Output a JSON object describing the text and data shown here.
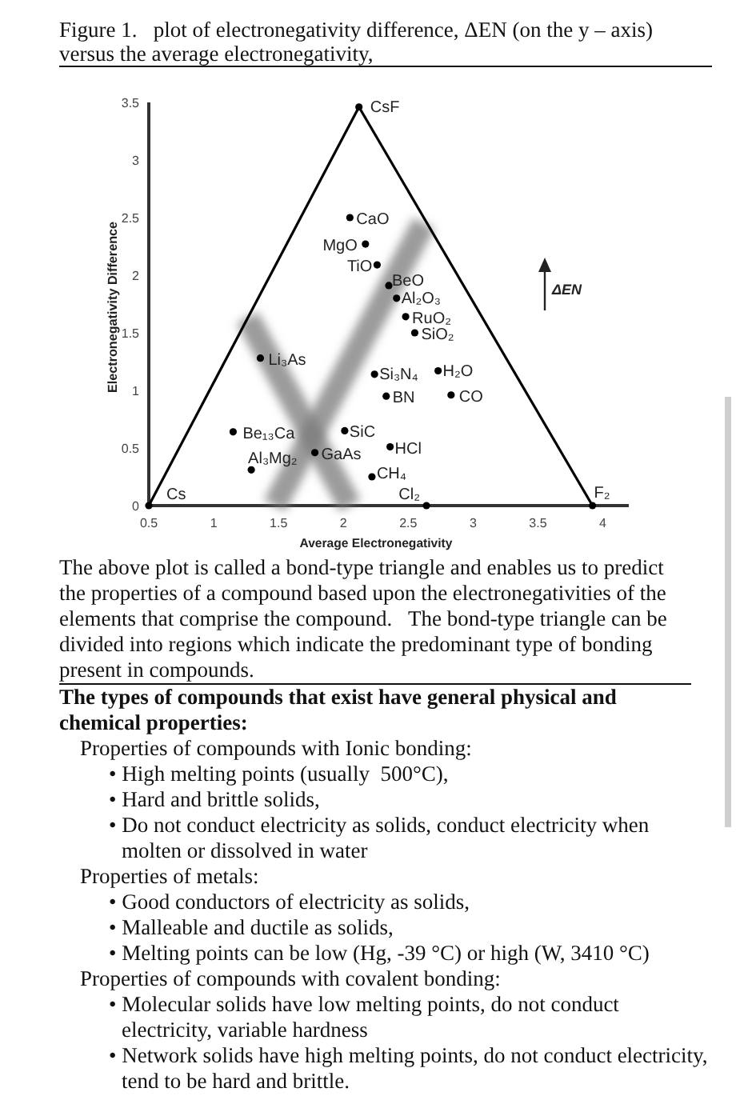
{
  "chart_data": {
    "type": "scatter",
    "title": "Figure 1.   plot of electronegativity difference, ΔEN (on the y – axis) versus the average electronegativity,",
    "xlabel": "Average Electronegativity",
    "ylabel": "Electronegativity Difference",
    "xlim": [
      0.5,
      4.2
    ],
    "ylim": [
      0,
      3.5
    ],
    "xticks": [
      0.5,
      1,
      1.5,
      2,
      2.5,
      3,
      3.5,
      4
    ],
    "yticks": [
      0,
      0.5,
      1,
      1.5,
      2,
      2.5,
      3,
      3.5
    ],
    "marker": "circle",
    "series": [
      {
        "type": "line",
        "color": "#7a7a7a",
        "marker": "none",
        "x": [
          1.26,
          2.05
        ],
        "values": [
          1.63,
          0
        ]
      },
      {
        "type": "line",
        "color": "#7a7a7a",
        "marker": "none",
        "x": [
          1.47,
          2.62
        ],
        "values": [
          0,
          2.45
        ]
      },
      {
        "type": "line",
        "color": "#000000",
        "marker": "none",
        "x": [
          0.5,
          2.12,
          3.92
        ],
        "values": [
          0,
          3.46,
          0
        ]
      },
      {
        "type": "scatter",
        "color": "#000000",
        "x": [
          2.12,
          2.05,
          2.17,
          2.26,
          2.35,
          2.41,
          2.48,
          2.55,
          1.36,
          2.24,
          2.33,
          2.73,
          2.83,
          1.15,
          2.01,
          1.78,
          2.36,
          1.29,
          2.22,
          2.64,
          0.5,
          3.92
        ],
        "values": [
          3.46,
          2.5,
          2.27,
          2.09,
          1.91,
          1.8,
          1.64,
          1.5,
          1.28,
          1.14,
          0.95,
          1.17,
          0.96,
          0.64,
          0.65,
          0.46,
          0.51,
          0.31,
          0.25,
          0,
          0,
          0
        ]
      }
    ],
    "annotations": [
      {
        "text": "CsF",
        "x": 2.12,
        "y": 3.46
      },
      {
        "text": "CaO",
        "x": 2.05,
        "y": 2.5
      },
      {
        "text": "MgO",
        "x": 2.17,
        "y": 2.27
      },
      {
        "text": "TiO",
        "x": 2.26,
        "y": 2.09
      },
      {
        "text": "BeO",
        "x": 2.35,
        "y": 1.91
      },
      {
        "text": "Al₂O₃",
        "x": 2.41,
        "y": 1.8
      },
      {
        "text": "RuO₂",
        "x": 2.48,
        "y": 1.64
      },
      {
        "text": "SiO₂",
        "x": 2.55,
        "y": 1.5
      },
      {
        "text": "Li₃As",
        "x": 1.36,
        "y": 1.28
      },
      {
        "text": "Si₃N₄",
        "x": 2.24,
        "y": 1.14
      },
      {
        "text": "BN",
        "x": 2.33,
        "y": 0.95
      },
      {
        "text": "H₂O",
        "x": 2.73,
        "y": 1.17
      },
      {
        "text": "CO",
        "x": 2.83,
        "y": 0.96
      },
      {
        "text": "Be₁₃Ca",
        "x": 1.15,
        "y": 0.64
      },
      {
        "text": "SiC",
        "x": 2.01,
        "y": 0.65
      },
      {
        "text": "GaAs",
        "x": 1.78,
        "y": 0.46
      },
      {
        "text": "HCl",
        "x": 2.36,
        "y": 0.51
      },
      {
        "text": "Al₃Mg₂",
        "x": 1.29,
        "y": 0.31
      },
      {
        "text": "CH₄",
        "x": 2.22,
        "y": 0.25
      },
      {
        "text": "Cl₂",
        "x": 2.64,
        "y": 0
      },
      {
        "text": "Cs",
        "x": 0.5,
        "y": 0
      },
      {
        "text": "F₂",
        "x": 3.92,
        "y": 0
      },
      "ΔEN",
      "The above plot is called a bond-type triangle and enables us to predict the properties of a compound based upon the electronegativities of the elements that comprise the compound.   The bond-type triangle can be divided into regions which indicate the predominant type of bonding present in compounds.",
      "The types of compounds that exist have general physical and chemical properties:",
      "Properties of compounds with Ionic bonding:",
      "• High melting points (usually  500°C),",
      "• Hard and brittle solids,",
      "• Do not conduct electricity as solids, conduct electricity when molten or dissolved in water",
      "Properties of metals:",
      "• Good conductors of electricity as solids,",
      "• Malleable and ductile as solids,",
      "• Melting points can be low (Hg, -39 °C) or high (W, 3410 °C)",
      "Properties of compounds with covalent bonding:",
      "• Molecular solids have low melting points, do not conduct electricity, variable hardness",
      "• Network solids have high melting points, do not conduct electricity, tend to be hard and brittle."
    ]
  }
}
